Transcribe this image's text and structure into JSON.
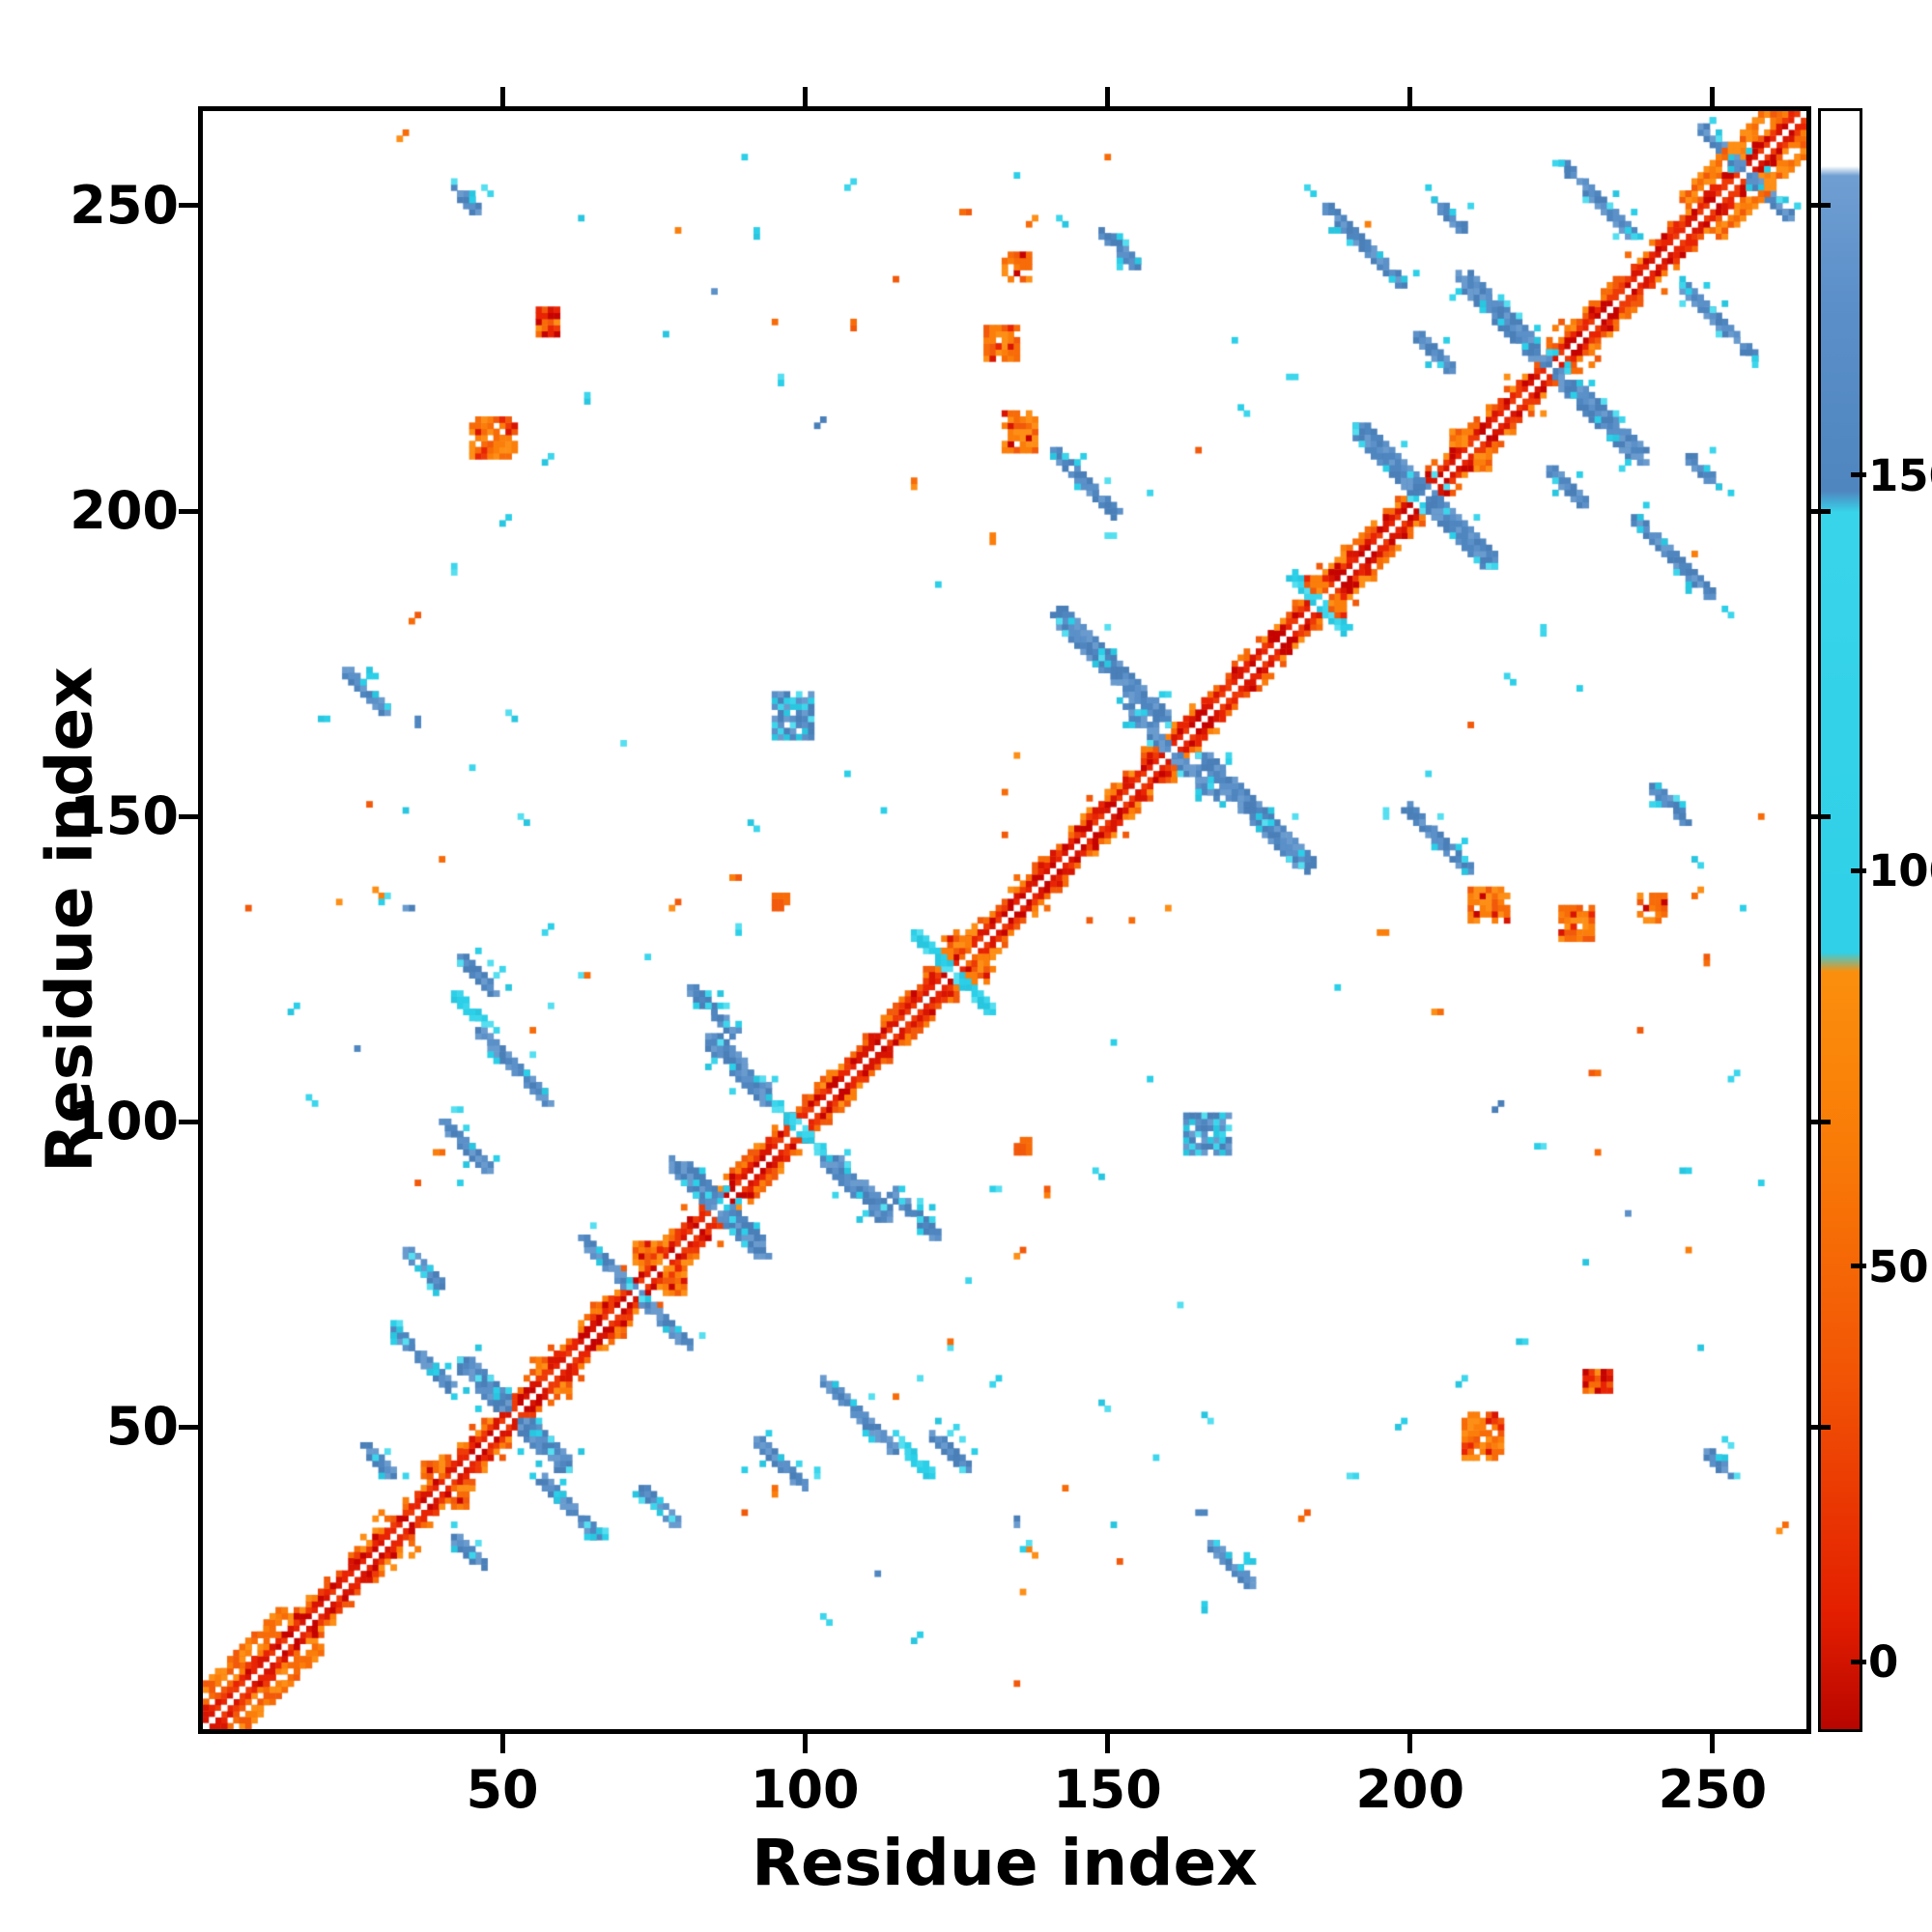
{
  "chart_data": {
    "type": "heatmap",
    "subtype": "protein residue contact map",
    "title": "",
    "xlabel": "Residue index",
    "ylabel": "Residue index",
    "x_range": [
      1,
      265
    ],
    "y_range": [
      1,
      265
    ],
    "x_ticks": [
      50,
      100,
      150,
      200,
      250
    ],
    "y_ticks": [
      50,
      100,
      150,
      200,
      250
    ],
    "grid": false,
    "background": "#ffffff",
    "colorbar": {
      "ticks": [
        0,
        50,
        100,
        150
      ],
      "top_value": 196,
      "bottom_value": -8.5,
      "stops": [
        {
          "pos": 0.0,
          "color": "#ffffff"
        },
        {
          "pos": 0.034,
          "color": "#ffffff"
        },
        {
          "pos": 0.04,
          "color": "#6f9ed2"
        },
        {
          "pos": 0.12,
          "color": "#5b8fc9"
        },
        {
          "pos": 0.235,
          "color": "#4f86c0"
        },
        {
          "pos": 0.248,
          "color": "#38d4ea"
        },
        {
          "pos": 0.52,
          "color": "#2fd0e8"
        },
        {
          "pos": 0.532,
          "color": "#fb8f0d"
        },
        {
          "pos": 0.64,
          "color": "#f97b07"
        },
        {
          "pos": 0.78,
          "color": "#f25505"
        },
        {
          "pos": 0.93,
          "color": "#e31e00"
        },
        {
          "pos": 1.0,
          "color": "#b80500"
        }
      ]
    },
    "palette": {
      "red": [
        "#c50300",
        "#d81402",
        "#e82405",
        "#ee3a07"
      ],
      "orange": [
        "#f2590a",
        "#f76b08",
        "#fb7e0b",
        "#fd8f16"
      ],
      "cyan": [
        "#2bcfe8",
        "#3cd6ec",
        "#29c6e0",
        "#55dff0"
      ],
      "blue": [
        "#4f86c0",
        "#5b90c8",
        "#6a9bce",
        "#4a7fb8"
      ],
      "white": "#ffffff"
    },
    "diagonal": {
      "core_offsets": 2,
      "core_color": "red",
      "flank_color": "orange",
      "identity_line_color": "#ffffff"
    },
    "clusters": [
      {
        "type": "streak",
        "x": 44,
        "y": 60,
        "len": 7,
        "w": 3,
        "dir": "anti",
        "color": "blue"
      },
      {
        "type": "streak",
        "x": 33,
        "y": 66,
        "len": 10,
        "w": 2,
        "dir": "anti",
        "color": "blue"
      },
      {
        "type": "streak",
        "x": 25,
        "y": 174,
        "len": 7,
        "w": 2,
        "dir": "anti",
        "color": "blue"
      },
      {
        "type": "streak",
        "x": 28,
        "y": 47,
        "len": 5,
        "w": 2,
        "dir": "anti",
        "color": "blue"
      },
      {
        "type": "streak",
        "x": 64,
        "y": 81,
        "len": 9,
        "w": 2,
        "dir": "anti",
        "color": "blue"
      },
      {
        "type": "streak",
        "x": 79,
        "y": 93,
        "len": 12,
        "w": 3,
        "dir": "anti",
        "color": "blue"
      },
      {
        "type": "streak",
        "x": 85,
        "y": 113,
        "len": 10,
        "w": 3,
        "dir": "anti",
        "color": "blue"
      },
      {
        "type": "streak",
        "x": 96,
        "y": 103,
        "len": 5,
        "w": 2,
        "dir": "anti",
        "color": "cyan"
      },
      {
        "type": "streak",
        "x": 104,
        "y": 58,
        "len": 12,
        "w": 2,
        "dir": "anti",
        "color": "blue"
      },
      {
        "type": "streak",
        "x": 117,
        "y": 47,
        "len": 5,
        "w": 2,
        "dir": "anti",
        "color": "cyan"
      },
      {
        "type": "streak",
        "x": 74,
        "y": 40,
        "len": 6,
        "w": 2,
        "dir": "anti",
        "color": "blue"
      },
      {
        "type": "streak",
        "x": 93,
        "y": 48,
        "len": 8,
        "w": 2,
        "dir": "anti",
        "color": "blue"
      },
      {
        "type": "streak",
        "x": 115,
        "y": 89,
        "len": 8,
        "w": 2,
        "dir": "anti",
        "color": "blue"
      },
      {
        "type": "streak",
        "x": 44,
        "y": 127,
        "len": 6,
        "w": 2,
        "dir": "anti",
        "color": "blue"
      },
      {
        "type": "streak",
        "x": 119,
        "y": 131,
        "len": 6,
        "w": 2,
        "dir": "anti",
        "color": "cyan"
      },
      {
        "type": "streak",
        "x": 142,
        "y": 183,
        "len": 18,
        "w": 3,
        "dir": "anti",
        "color": "blue"
      },
      {
        "type": "streak",
        "x": 154,
        "y": 168,
        "len": 8,
        "w": 2,
        "dir": "anti",
        "color": "blue"
      },
      {
        "type": "streak",
        "x": 181,
        "y": 190,
        "len": 6,
        "w": 2,
        "dir": "anti",
        "color": "cyan"
      },
      {
        "type": "streak",
        "x": 192,
        "y": 213,
        "len": 13,
        "w": 3,
        "dir": "anti",
        "color": "blue"
      },
      {
        "type": "streak",
        "x": 209,
        "y": 238,
        "len": 14,
        "w": 3,
        "dir": "anti",
        "color": "blue"
      },
      {
        "type": "streak",
        "x": 226,
        "y": 257,
        "len": 12,
        "w": 2,
        "dir": "anti",
        "color": "blue"
      },
      {
        "type": "streak",
        "x": 238,
        "y": 199,
        "len": 13,
        "w": 2,
        "dir": "anti",
        "color": "blue"
      },
      {
        "type": "streak",
        "x": 200,
        "y": 152,
        "len": 11,
        "w": 2,
        "dir": "anti",
        "color": "blue"
      },
      {
        "type": "streak",
        "x": 224,
        "y": 207,
        "len": 6,
        "w": 2,
        "dir": "anti",
        "color": "blue"
      },
      {
        "type": "streak",
        "x": 241,
        "y": 155,
        "len": 6,
        "w": 2,
        "dir": "anti",
        "color": "blue"
      },
      {
        "type": "streak",
        "x": 247,
        "y": 209,
        "len": 5,
        "w": 2,
        "dir": "anti",
        "color": "blue"
      },
      {
        "type": "streak",
        "x": 250,
        "y": 46,
        "len": 4,
        "w": 2,
        "dir": "anti",
        "color": "blue"
      },
      {
        "type": "streak",
        "x": 249,
        "y": 263,
        "len": 7,
        "w": 2,
        "dir": "anti",
        "color": "blue"
      },
      {
        "type": "streak",
        "x": 246,
        "y": 252,
        "len": 17,
        "w": 2,
        "dir": "para",
        "color": "orange"
      },
      {
        "type": "streak",
        "x": 2,
        "y": 8,
        "len": 13,
        "w": 2,
        "dir": "para",
        "color": "orange"
      },
      {
        "type": "blob",
        "x": 163,
        "y": 95,
        "w": 8,
        "h": 7,
        "color": "blue"
      },
      {
        "type": "blob",
        "x": 45,
        "y": 209,
        "w": 8,
        "h": 7,
        "color": "orange"
      },
      {
        "type": "blob",
        "x": 56,
        "y": 229,
        "w": 4,
        "h": 5,
        "color": "red"
      },
      {
        "type": "blob",
        "x": 130,
        "y": 225,
        "w": 6,
        "h": 6,
        "color": "orange"
      },
      {
        "type": "blob",
        "x": 210,
        "y": 133,
        "w": 7,
        "h": 6,
        "color": "orange"
      },
      {
        "type": "blob",
        "x": 238,
        "y": 133,
        "w": 5,
        "h": 5,
        "color": "orange"
      },
      {
        "type": "blob",
        "x": 72,
        "y": 77,
        "w": 5,
        "h": 4,
        "color": "orange"
      },
      {
        "type": "blob",
        "x": 123,
        "y": 127,
        "w": 5,
        "h": 4,
        "color": "orange"
      },
      {
        "type": "blob",
        "x": 183,
        "y": 187,
        "w": 4,
        "h": 3,
        "color": "orange"
      },
      {
        "type": "blob",
        "x": 37,
        "y": 42,
        "w": 4,
        "h": 3,
        "color": "orange"
      },
      {
        "type": "blob",
        "x": 207,
        "y": 211,
        "w": 3,
        "h": 3,
        "color": "orange"
      },
      {
        "type": "blob",
        "x": 95,
        "y": 135,
        "w": 3,
        "h": 3,
        "color": "orange"
      }
    ],
    "dots": [
      [
        8,
        135,
        "orange"
      ],
      [
        23,
        136,
        "orange"
      ],
      [
        30,
        137,
        "orange"
      ],
      [
        35,
        135,
        "blue"
      ],
      [
        28,
        152,
        "orange"
      ],
      [
        34,
        151,
        "cyan"
      ],
      [
        21,
        166,
        "cyan"
      ],
      [
        52,
        166,
        "cyan"
      ],
      [
        70,
        162,
        "cyan"
      ],
      [
        88,
        140,
        "orange"
      ],
      [
        92,
        148,
        "cyan"
      ],
      [
        40,
        95,
        "orange"
      ],
      [
        36,
        90,
        "orange"
      ],
      [
        43,
        90,
        "cyan"
      ],
      [
        55,
        115,
        "orange"
      ],
      [
        58,
        119,
        "cyan"
      ],
      [
        63,
        124,
        "cyan"
      ],
      [
        33,
        261,
        "orange"
      ],
      [
        48,
        252,
        "cyan"
      ],
      [
        63,
        248,
        "cyan"
      ],
      [
        79,
        246,
        "orange"
      ],
      [
        90,
        258,
        "cyan"
      ],
      [
        95,
        231,
        "orange"
      ],
      [
        107,
        253,
        "cyan"
      ],
      [
        127,
        249,
        "orange"
      ],
      [
        135,
        255,
        "cyan"
      ],
      [
        143,
        247,
        "cyan"
      ],
      [
        150,
        258,
        "orange"
      ],
      [
        150,
        196,
        "cyan"
      ],
      [
        157,
        203,
        "cyan"
      ],
      [
        165,
        210,
        "orange"
      ],
      [
        173,
        216,
        "cyan"
      ],
      [
        180,
        222,
        "cyan"
      ],
      [
        184,
        252,
        "cyan"
      ],
      [
        193,
        247,
        "orange"
      ],
      [
        188,
        122,
        "cyan"
      ],
      [
        196,
        131,
        "orange"
      ],
      [
        204,
        118,
        "orange"
      ],
      [
        214,
        102,
        "blue"
      ],
      [
        222,
        96,
        "cyan"
      ],
      [
        230,
        108,
        "orange"
      ],
      [
        238,
        115,
        "orange"
      ],
      [
        247,
        137,
        "orange"
      ],
      [
        241,
        152,
        "cyan"
      ],
      [
        228,
        171,
        "cyan"
      ],
      [
        257,
        224,
        "cyan"
      ],
      [
        245,
        92,
        "cyan"
      ],
      [
        236,
        85,
        "blue"
      ],
      [
        229,
        77,
        "cyan"
      ],
      [
        218,
        64,
        "cyan"
      ],
      [
        208,
        57,
        "cyan"
      ],
      [
        198,
        50,
        "cyan"
      ],
      [
        190,
        42,
        "cyan"
      ],
      [
        182,
        35,
        "orange"
      ],
      [
        174,
        28,
        "cyan"
      ],
      [
        166,
        36,
        "blue"
      ],
      [
        158,
        45,
        "cyan"
      ],
      [
        150,
        53,
        "cyan"
      ],
      [
        143,
        40,
        "orange"
      ],
      [
        136,
        30,
        "cyan"
      ],
      [
        124,
        64,
        "orange"
      ],
      [
        131,
        57,
        "cyan"
      ],
      [
        127,
        74,
        "cyan"
      ],
      [
        135,
        78,
        "orange"
      ],
      [
        131,
        89,
        "cyan"
      ],
      [
        118,
        15,
        "cyan"
      ],
      [
        112,
        26,
        "blue"
      ],
      [
        104,
        18,
        "cyan"
      ],
      [
        157,
        107,
        "cyan"
      ],
      [
        151,
        113,
        "cyan"
      ],
      [
        120,
        120,
        "cyan"
      ],
      [
        147,
        133,
        "orange"
      ],
      [
        154,
        133,
        "orange"
      ],
      [
        160,
        135,
        "orange"
      ]
    ]
  }
}
